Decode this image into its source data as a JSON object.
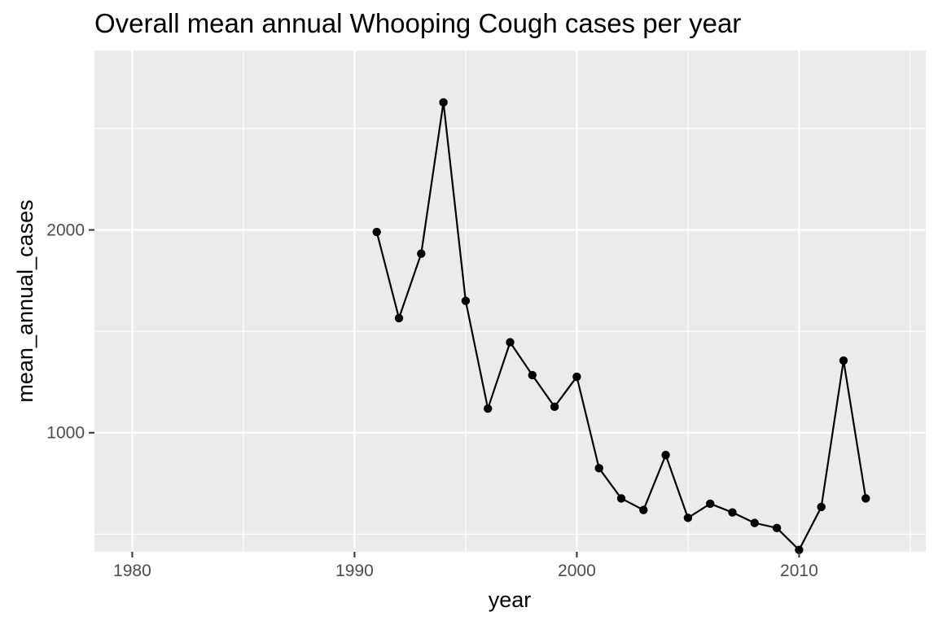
{
  "chart_data": {
    "type": "line",
    "title": "Overall mean annual Whooping Cough cases per year",
    "xlabel": "year",
    "ylabel": "mean_annual_cases",
    "xlim": [
      1978.3,
      2015.7
    ],
    "ylim": [
      413,
      2885
    ],
    "x_ticks": [
      1980,
      1990,
      2000,
      2010
    ],
    "x_tick_labels": [
      "1980",
      "1990",
      "2000",
      "2010"
    ],
    "x_minor_ticks": [
      1985,
      1995,
      2005,
      2015
    ],
    "y_ticks": [
      1000,
      2000
    ],
    "y_tick_labels": [
      "1000",
      "2000"
    ],
    "y_minor_ticks": [
      500,
      1500,
      2500
    ],
    "grid": true,
    "colors": {
      "panel_background": "#ebebeb",
      "grid": "#ffffff",
      "line": "#000000",
      "point": "#000000"
    },
    "series": [
      {
        "x": [
          1991,
          1992,
          1993,
          1994,
          1995,
          1996,
          1997,
          1998,
          1999,
          2000,
          2001,
          2002,
          2003,
          2004,
          2005,
          2006,
          2007,
          2008,
          2009,
          2010,
          2011,
          2012,
          2013
        ],
        "y": [
          1990,
          1565,
          1883,
          2629,
          1650,
          1119,
          1446,
          1284,
          1128,
          1276,
          825,
          676,
          619,
          890,
          580,
          650,
          607,
          555,
          530,
          422,
          634,
          1356,
          676
        ]
      }
    ]
  }
}
